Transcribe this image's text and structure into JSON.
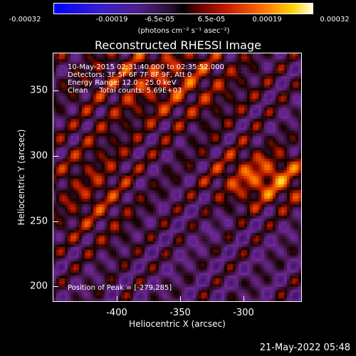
{
  "colorbar": {
    "ticks": [
      "-0.00032",
      "-0.00019",
      "-6.5e-05",
      "6.5e-05",
      "0.00019",
      "0.00032"
    ],
    "unit_label": "(photons cm⁻² s⁻¹ asec⁻²)",
    "range": [
      -0.00032,
      0.00032
    ],
    "colors": [
      "#0000ff",
      "#4e1f8a",
      "#000000",
      "#c01800",
      "#ff6a00",
      "#ffd000",
      "#ffffe0"
    ]
  },
  "title": "Reconstructed RHESSI Image",
  "overlay": {
    "line1": "10-May-2015 02:31:40.000 to 02:35:52.000",
    "line2": "Detectors: 3F 5F 6F 7F 8F 9F, Att 0",
    "line3": "Energy Range: 12.0 - 25.0 keV",
    "line4": "Clean     Total counts: 5.69E+03",
    "peak": "Position of Peak = [-279,285]"
  },
  "chart_data": {
    "type": "heatmap",
    "title": "Reconstructed RHESSI Image",
    "xlabel": "Heliocentric X (arcsec)",
    "ylabel": "Heliocentric Y (arcsec)",
    "xlim": [
      -449,
      -265
    ],
    "ylim": [
      185,
      373
    ],
    "xticks": [
      "-400",
      "-350",
      "-300"
    ],
    "yticks": [
      "350",
      "300",
      "250",
      "200"
    ],
    "xtick_values": [
      -400,
      -350,
      -300
    ],
    "ytick_values": [
      350,
      300,
      250,
      200
    ],
    "peak_position": [
      -279,
      285
    ],
    "colorscale_range": [
      -0.00032,
      0.00032
    ]
  },
  "footer": {
    "date": "21-May-2022 05:48"
  }
}
